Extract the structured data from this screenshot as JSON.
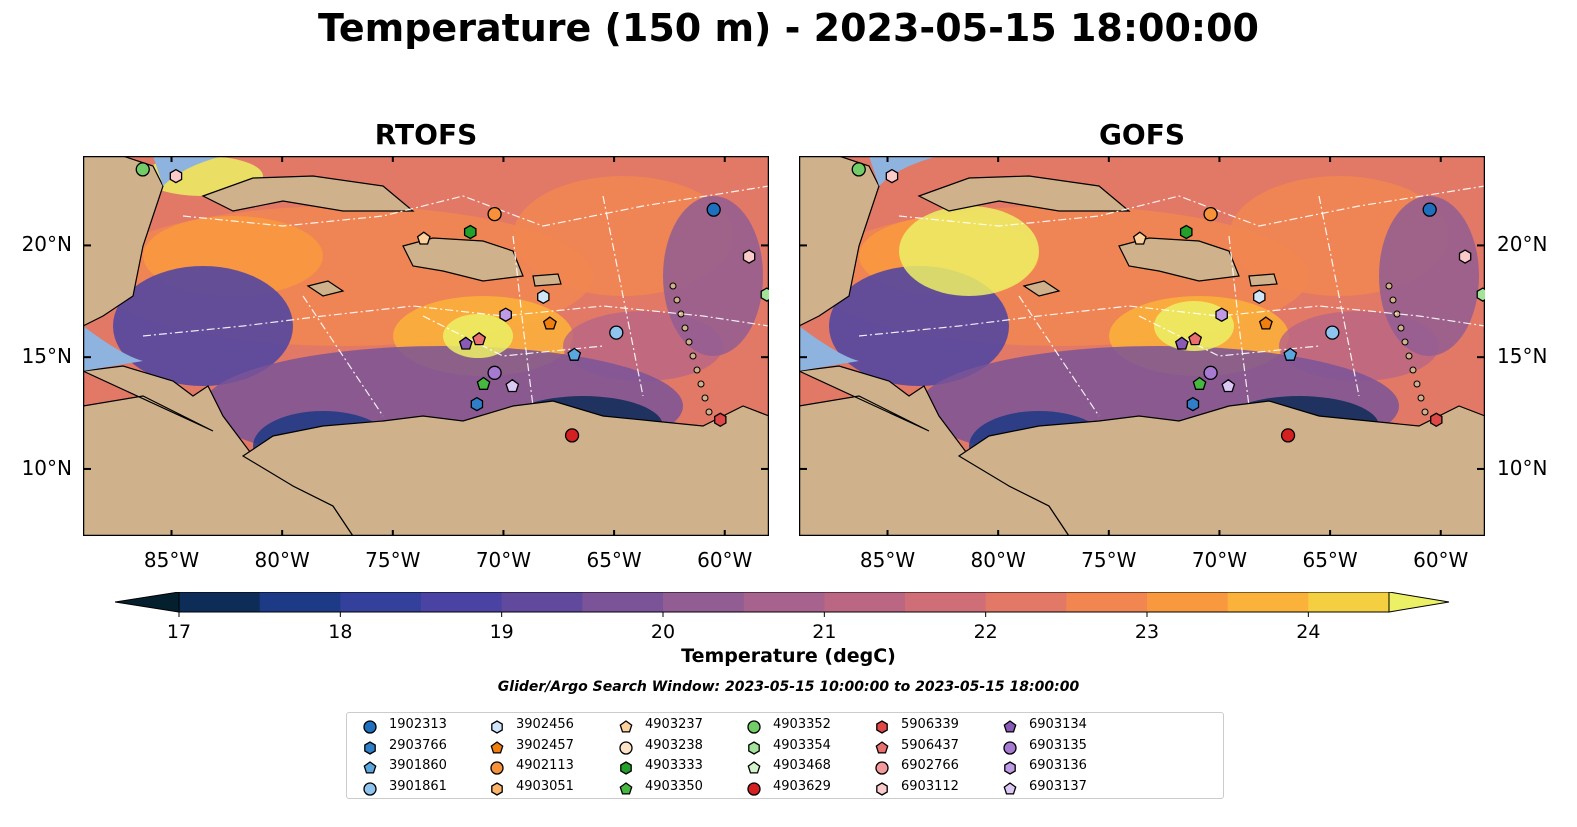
{
  "title": "Temperature (150 m) - 2023-05-15 18:00:00",
  "panels": [
    {
      "title": "RTOFS",
      "lat_labels_side": "left"
    },
    {
      "title": "GOFS",
      "lat_labels_side": "right"
    }
  ],
  "axes": {
    "lon_ticks": [
      "85°W",
      "80°W",
      "75°W",
      "70°W",
      "65°W",
      "60°W"
    ],
    "lon_values": [
      -85,
      -80,
      -75,
      -70,
      -65,
      -60
    ],
    "lat_ticks": [
      "20°N",
      "15°N",
      "10°N"
    ],
    "lat_values": [
      20,
      15,
      10
    ],
    "lon_range": [
      -89,
      -58
    ],
    "lat_range": [
      7,
      24
    ]
  },
  "colorbar": {
    "label": "Temperature (degC)",
    "ticks": [
      "17",
      "18",
      "19",
      "20",
      "21",
      "22",
      "23",
      "24"
    ],
    "range": [
      17,
      24.5
    ],
    "step": 0.5,
    "extend": "both",
    "colors": [
      "#04202f",
      "#0d2c58",
      "#1c3a86",
      "#33409c",
      "#4a43a4",
      "#614a9e",
      "#7a5398",
      "#915d93",
      "#a7628d",
      "#bb6784",
      "#d06e77",
      "#e27866",
      "#f18651",
      "#f9993f",
      "#fbb23a",
      "#f5cf42",
      "#ecf065"
    ]
  },
  "search_window": "Glider/Argo Search Window: 2023-05-15 10:00:00 to 2023-05-15 18:00:00",
  "legend": [
    {
      "id": "1902313",
      "marker": "circle",
      "color": "#1f6fbf"
    },
    {
      "id": "2903766",
      "marker": "hexagon",
      "color": "#2f7fc8"
    },
    {
      "id": "3901860",
      "marker": "pentagon",
      "color": "#5aa7e0"
    },
    {
      "id": "3901861",
      "marker": "circle",
      "color": "#8fc4ee"
    },
    {
      "id": "3902456",
      "marker": "hexagon",
      "color": "#cfe6fa"
    },
    {
      "id": "3902457",
      "marker": "pentagon",
      "color": "#f07f10"
    },
    {
      "id": "4902113",
      "marker": "circle",
      "color": "#f7923a"
    },
    {
      "id": "4903051",
      "marker": "hexagon",
      "color": "#fbb46a"
    },
    {
      "id": "4903237",
      "marker": "pentagon",
      "color": "#fdd09e"
    },
    {
      "id": "4903238",
      "marker": "circle",
      "color": "#fde3c8"
    },
    {
      "id": "4903333",
      "marker": "hexagon",
      "color": "#22a02a"
    },
    {
      "id": "4903350",
      "marker": "pentagon",
      "color": "#46b840"
    },
    {
      "id": "4903352",
      "marker": "circle",
      "color": "#72cc68"
    },
    {
      "id": "4903354",
      "marker": "hexagon",
      "color": "#a3e29a"
    },
    {
      "id": "4903468",
      "marker": "pentagon",
      "color": "#d2f5cc"
    },
    {
      "id": "4903629",
      "marker": "circle",
      "color": "#d42020"
    },
    {
      "id": "5906339",
      "marker": "hexagon",
      "color": "#e04848"
    },
    {
      "id": "5906437",
      "marker": "pentagon",
      "color": "#ea7070"
    },
    {
      "id": "6902766",
      "marker": "circle",
      "color": "#f39a9a"
    },
    {
      "id": "6903112",
      "marker": "hexagon",
      "color": "#fbcaca"
    },
    {
      "id": "6903134",
      "marker": "pentagon",
      "color": "#8a5ab8"
    },
    {
      "id": "6903135",
      "marker": "circle",
      "color": "#a57ad0"
    },
    {
      "id": "6903136",
      "marker": "hexagon",
      "color": "#bf9ae6"
    },
    {
      "id": "6903137",
      "marker": "pentagon",
      "color": "#dcc8f4"
    }
  ],
  "floats_rtofs": [
    {
      "id": "4903352",
      "lon": -86.3,
      "lat": 23.4
    },
    {
      "id": "6903112",
      "lon": -84.8,
      "lat": 23.1
    },
    {
      "id": "1902313",
      "lon": -60.5,
      "lat": 21.6
    },
    {
      "id": "4902113",
      "lon": -70.4,
      "lat": 21.4
    },
    {
      "id": "4903333",
      "lon": -71.5,
      "lat": 20.6
    },
    {
      "id": "4903237",
      "lon": -73.6,
      "lat": 20.3
    },
    {
      "id": "6903112",
      "lon": -58.9,
      "lat": 19.5
    },
    {
      "id": "4903354",
      "lon": -58.1,
      "lat": 17.8
    },
    {
      "id": "3902456",
      "lon": -68.2,
      "lat": 17.7
    },
    {
      "id": "6903136",
      "lon": -69.9,
      "lat": 16.9
    },
    {
      "id": "3902457",
      "lon": -67.9,
      "lat": 16.5
    },
    {
      "id": "3901861",
      "lon": -64.9,
      "lat": 16.1
    },
    {
      "id": "5906437",
      "lon": -71.1,
      "lat": 15.8
    },
    {
      "id": "6903134",
      "lon": -71.7,
      "lat": 15.6
    },
    {
      "id": "3901860",
      "lon": -66.8,
      "lat": 15.1
    },
    {
      "id": "6903135",
      "lon": -70.4,
      "lat": 14.3
    },
    {
      "id": "6903137",
      "lon": -69.6,
      "lat": 13.7
    },
    {
      "id": "4903350",
      "lon": -70.9,
      "lat": 13.8
    },
    {
      "id": "2903766",
      "lon": -71.2,
      "lat": 12.9
    },
    {
      "id": "5906339",
      "lon": -60.2,
      "lat": 12.2
    },
    {
      "id": "4903629",
      "lon": -66.9,
      "lat": 11.5
    }
  ],
  "floats_gofs": [
    {
      "id": "4903352",
      "lon": -86.3,
      "lat": 23.4
    },
    {
      "id": "6903112",
      "lon": -84.8,
      "lat": 23.1
    },
    {
      "id": "1902313",
      "lon": -60.5,
      "lat": 21.6
    },
    {
      "id": "4902113",
      "lon": -70.4,
      "lat": 21.4
    },
    {
      "id": "4903333",
      "lon": -71.5,
      "lat": 20.6
    },
    {
      "id": "4903237",
      "lon": -73.6,
      "lat": 20.3
    },
    {
      "id": "6903112",
      "lon": -58.9,
      "lat": 19.5
    },
    {
      "id": "4903354",
      "lon": -58.1,
      "lat": 17.8
    },
    {
      "id": "3902456",
      "lon": -68.2,
      "lat": 17.7
    },
    {
      "id": "6903136",
      "lon": -69.9,
      "lat": 16.9
    },
    {
      "id": "3902457",
      "lon": -67.9,
      "lat": 16.5
    },
    {
      "id": "3901861",
      "lon": -64.9,
      "lat": 16.1
    },
    {
      "id": "5906437",
      "lon": -71.1,
      "lat": 15.8
    },
    {
      "id": "6903134",
      "lon": -71.7,
      "lat": 15.6
    },
    {
      "id": "3901860",
      "lon": -66.8,
      "lat": 15.1
    },
    {
      "id": "6903135",
      "lon": -70.4,
      "lat": 14.3
    },
    {
      "id": "6903137",
      "lon": -69.6,
      "lat": 13.7
    },
    {
      "id": "4903350",
      "lon": -70.9,
      "lat": 13.8
    },
    {
      "id": "2903766",
      "lon": -71.2,
      "lat": 12.9
    },
    {
      "id": "5906339",
      "lon": -60.2,
      "lat": 12.2
    },
    {
      "id": "4903629",
      "lon": -66.9,
      "lat": 11.5
    }
  ]
}
